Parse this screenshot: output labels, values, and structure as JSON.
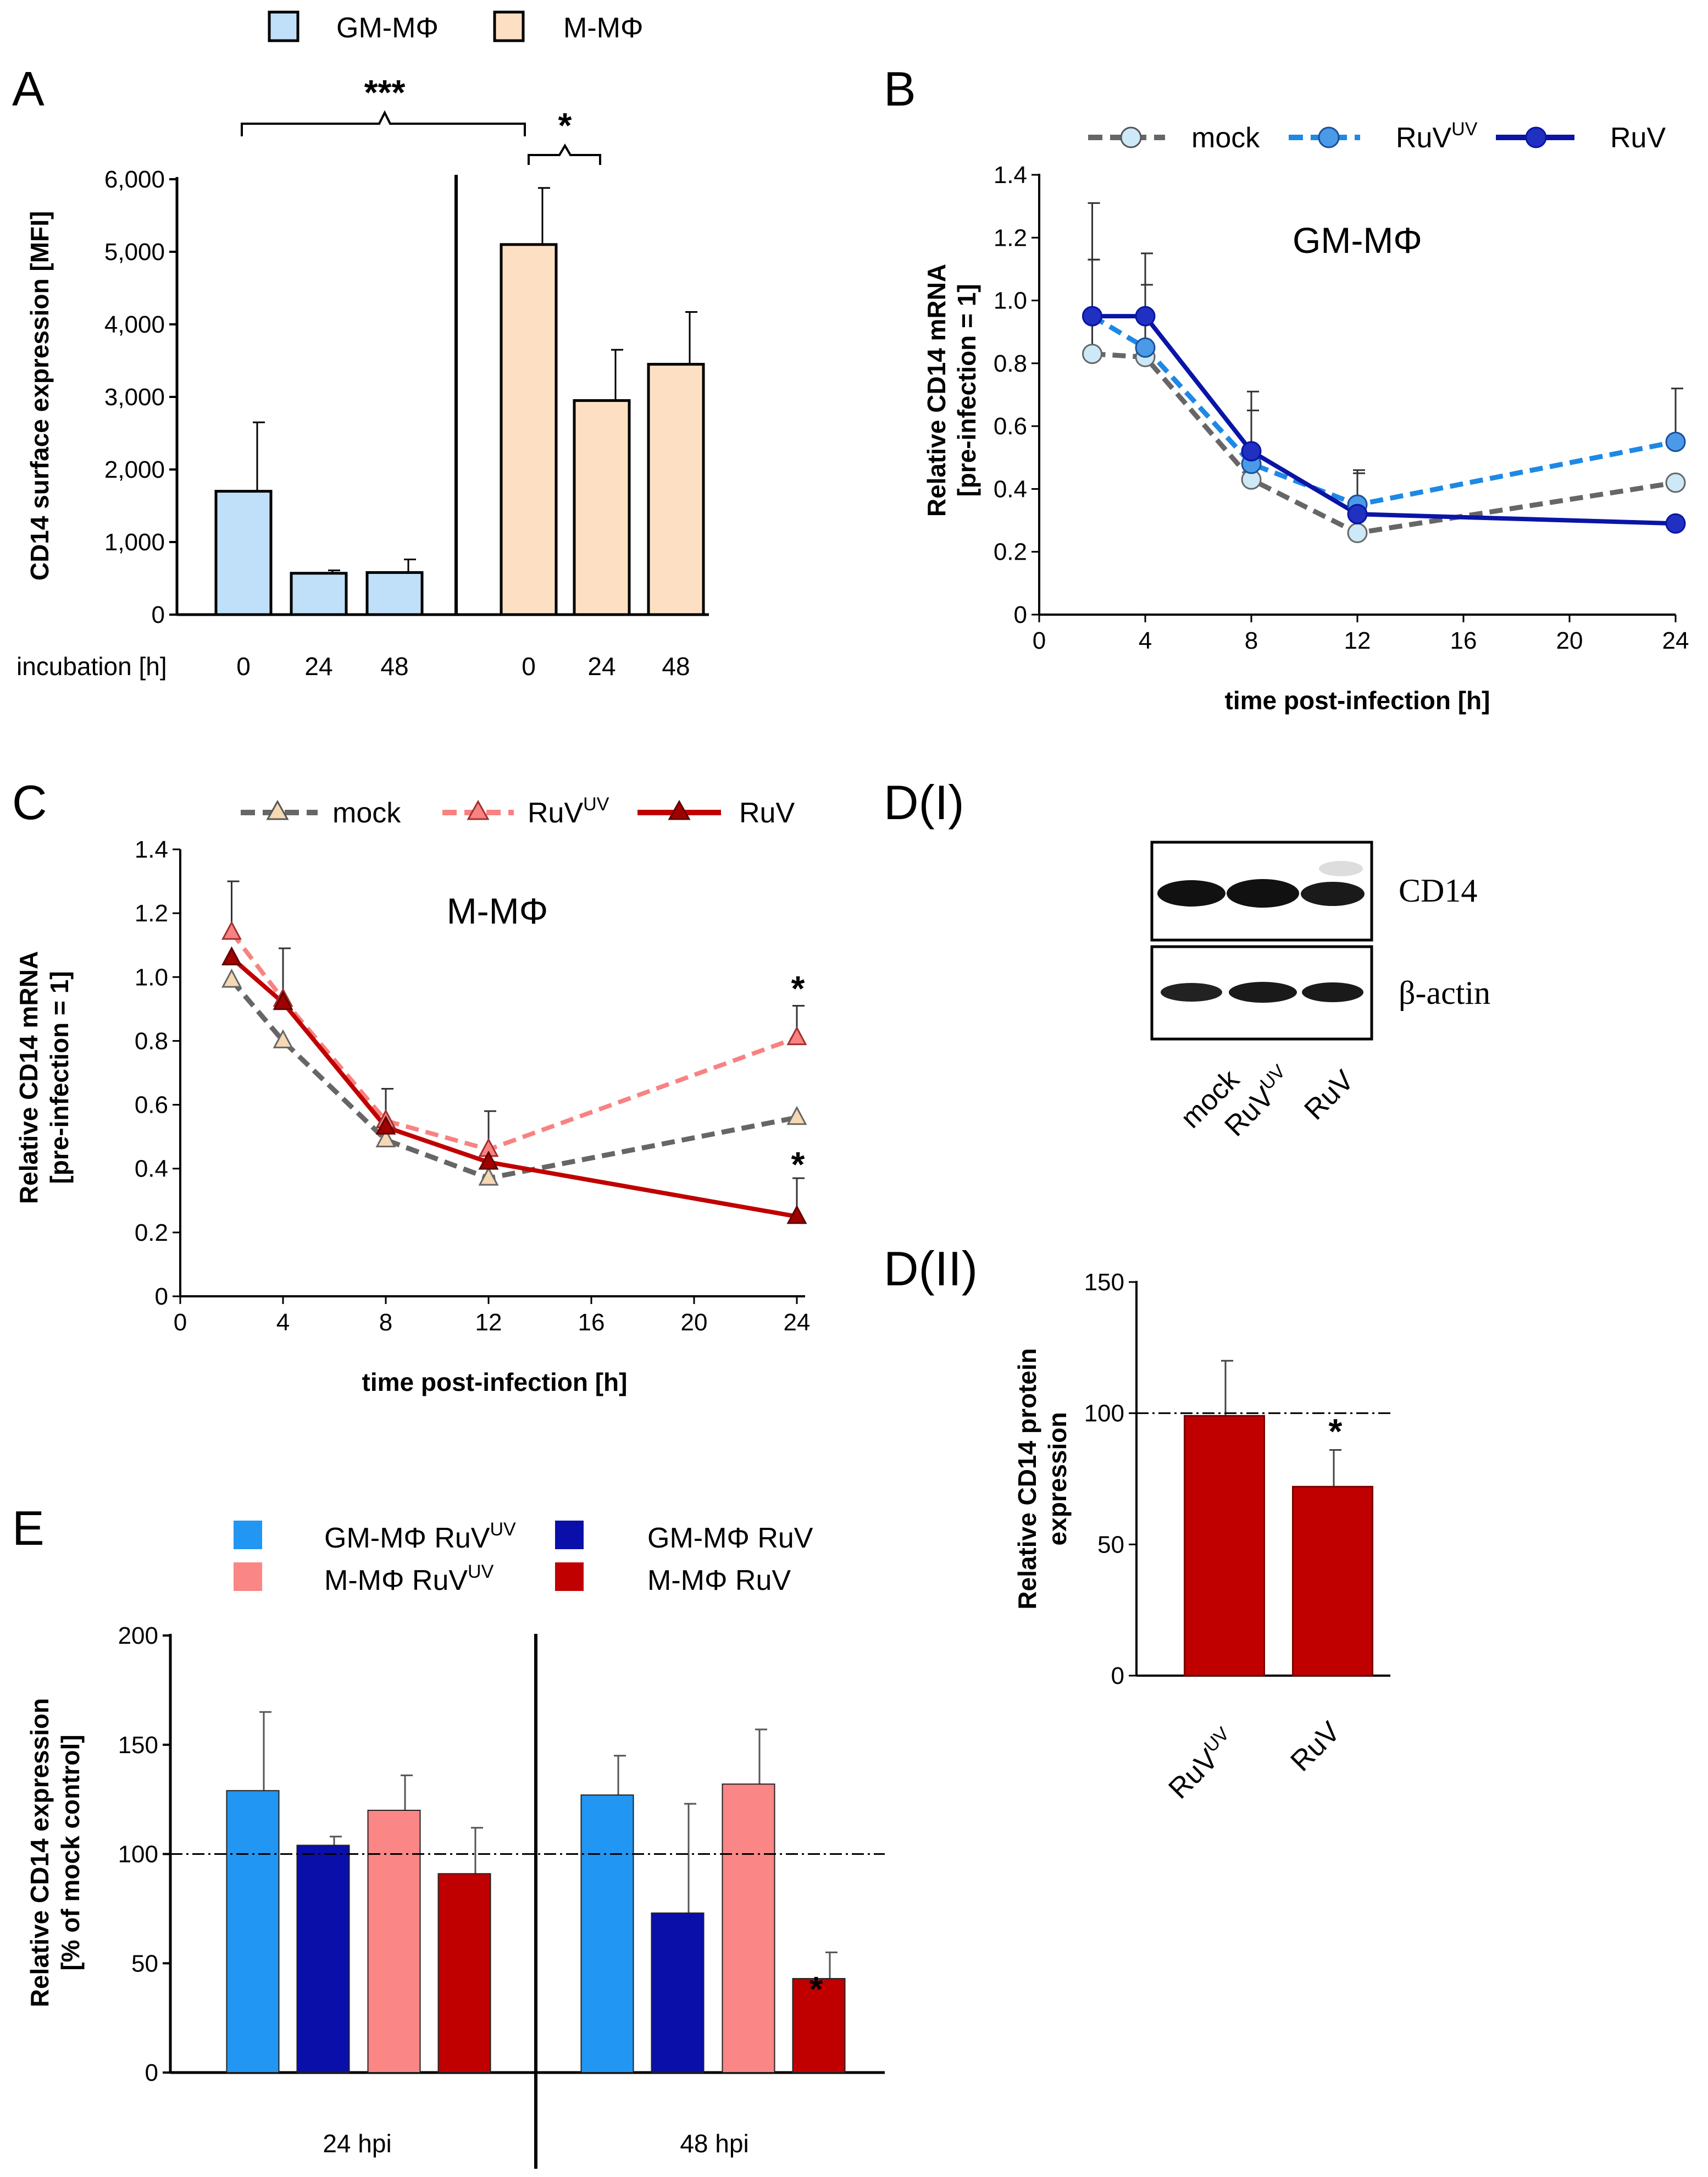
{
  "panels": {
    "A": "A",
    "B": "B",
    "C": "C",
    "D1": "D(I)",
    "D2": "D(II)",
    "E": "E"
  },
  "colors": {
    "gm_light_blue": "#bfe0f8",
    "m_peach": "#fde0c4",
    "ruvuv_blue": "#1e88e5",
    "ruv_blue": "#0a14a6",
    "ruvuv_pink": "#f88282",
    "ruv_red": "#c00000",
    "mock_gray": "#666666",
    "bar_pink": "#fa8686",
    "bar_red": "#c00000",
    "bar_lightblue": "#2196f3",
    "bar_darkblue": "#0a0faa"
  },
  "chart_data": [
    {
      "id": "A",
      "type": "bar",
      "legend": [
        "GM-MΦ",
        "M-MΦ"
      ],
      "ylabel": "CD14 surface expression [MFI]",
      "xlabel_prefix": "incubation [h]",
      "ylim": [
        0,
        6000
      ],
      "yticks": [
        "0",
        "1,000",
        "2,000",
        "3,000",
        "4,000",
        "5,000",
        "6,000"
      ],
      "yvals": [
        0,
        1000,
        2000,
        3000,
        4000,
        5000,
        6000
      ],
      "groups": [
        {
          "name": "GM-MΦ",
          "categories": [
            "0",
            "24",
            "48"
          ],
          "values": [
            1700,
            570,
            580
          ],
          "errors": [
            950,
            40,
            180
          ]
        },
        {
          "name": "M-MΦ",
          "categories": [
            "0",
            "24",
            "48"
          ],
          "values": [
            5100,
            2950,
            3450
          ],
          "errors": [
            780,
            700,
            720
          ]
        }
      ],
      "significance": [
        {
          "label": "***",
          "between": "GM-MΦ 0h vs M-MΦ 0h"
        },
        {
          "label": "*",
          "between": "M-MΦ 0h vs 24h"
        }
      ]
    },
    {
      "id": "B",
      "type": "line",
      "title": "GM-MΦ",
      "ylabel_lines": [
        "Relative CD14 mRNA",
        "[pre-infection = 1]"
      ],
      "xlabel": "time post-infection [h]",
      "xlim": [
        0,
        24
      ],
      "ylim": [
        0,
        1.4
      ],
      "xticks": [
        0,
        4,
        8,
        12,
        16,
        20,
        24
      ],
      "yticks": [
        "0",
        "0.2",
        "0.4",
        "0.6",
        "0.8",
        "1.0",
        "1.2",
        "1.4"
      ],
      "x": [
        2,
        4,
        8,
        12,
        24
      ],
      "series": [
        {
          "name": "mock",
          "values": [
            0.83,
            0.82,
            0.43,
            0.26,
            0.42
          ],
          "errors": [
            0.3,
            0.0,
            0.0,
            0.0,
            0.0
          ]
        },
        {
          "name": "RuV",
          "name_sup": "UV",
          "values": [
            0.95,
            0.85,
            0.48,
            0.35,
            0.55
          ],
          "errors": [
            0.18,
            0.2,
            0.17,
            0.1,
            0.17
          ]
        },
        {
          "name": "RuV",
          "values": [
            0.95,
            0.95,
            0.52,
            0.32,
            0.29
          ],
          "errors": [
            0.36,
            0.2,
            0.19,
            0.14,
            0.02
          ]
        }
      ]
    },
    {
      "id": "C",
      "type": "line",
      "title": "M-MΦ",
      "ylabel_lines": [
        "Relative CD14 mRNA",
        "[pre-infection = 1]"
      ],
      "xlabel": "time post-infection [h]",
      "xlim": [
        0,
        24
      ],
      "ylim": [
        0,
        1.4
      ],
      "xticks": [
        0,
        4,
        8,
        12,
        16,
        20,
        24
      ],
      "yticks": [
        "0",
        "0.2",
        "0.4",
        "0.6",
        "0.8",
        "1.0",
        "1.2",
        "1.4"
      ],
      "x": [
        2,
        4,
        8,
        12,
        24
      ],
      "series": [
        {
          "name": "mock",
          "values": [
            0.99,
            0.8,
            0.49,
            0.37,
            0.56
          ],
          "errors": [
            0.0,
            0.0,
            0.0,
            0.0,
            0.0
          ]
        },
        {
          "name": "RuV",
          "name_sup": "UV",
          "values": [
            1.14,
            0.93,
            0.55,
            0.46,
            0.81
          ],
          "errors": [
            0.16,
            0.16,
            0.1,
            0.12,
            0.1
          ]
        },
        {
          "name": "RuV",
          "values": [
            1.06,
            0.92,
            0.53,
            0.42,
            0.25
          ],
          "errors": [
            0.0,
            0.0,
            0.0,
            0.0,
            0.12
          ]
        }
      ],
      "annotations": [
        "*",
        "*"
      ]
    },
    {
      "id": "D2",
      "type": "bar",
      "ylabel_lines": [
        "Relative CD14 protein",
        "expression"
      ],
      "ylim": [
        0,
        150
      ],
      "yticks": [
        "0",
        "50",
        "100",
        "150"
      ],
      "yvals": [
        0,
        50,
        100,
        150
      ],
      "reference_line": 100,
      "categories": [
        {
          "label": "RuV",
          "sup": "UV"
        },
        {
          "label": "RuV",
          "sup": ""
        }
      ],
      "values": [
        99,
        72
      ],
      "errors": [
        21,
        14
      ],
      "annotations": [
        "",
        "*"
      ]
    },
    {
      "id": "E",
      "type": "bar",
      "ylabel_lines": [
        "Relative CD14 expression",
        "[% of mock control]"
      ],
      "ylim": [
        0,
        200
      ],
      "yticks": [
        "0",
        "50",
        "100",
        "150",
        "200"
      ],
      "yvals": [
        0,
        50,
        100,
        150,
        200
      ],
      "reference_line": 100,
      "legend": [
        {
          "label": "GM-MΦ RuV",
          "sup": "UV"
        },
        {
          "label": "GM-MΦ RuV",
          "sup": ""
        },
        {
          "label": "M-MΦ RuV",
          "sup": "UV"
        },
        {
          "label": "M-MΦ RuV",
          "sup": ""
        }
      ],
      "groups": [
        {
          "label": "24 hpi",
          "values": [
            129,
            104,
            120,
            91
          ],
          "errors": [
            36,
            4,
            16,
            21
          ]
        },
        {
          "label": "48 hpi",
          "values": [
            127,
            73,
            132,
            43
          ],
          "errors": [
            18,
            50,
            25,
            12
          ]
        }
      ],
      "annotations": [
        "*"
      ]
    }
  ],
  "blot": {
    "labels": [
      "CD14",
      "β-actin"
    ],
    "lanes": [
      {
        "label": "mock",
        "sup": ""
      },
      {
        "label": "RuV",
        "sup": "UV"
      },
      {
        "label": "RuV",
        "sup": ""
      }
    ]
  }
}
